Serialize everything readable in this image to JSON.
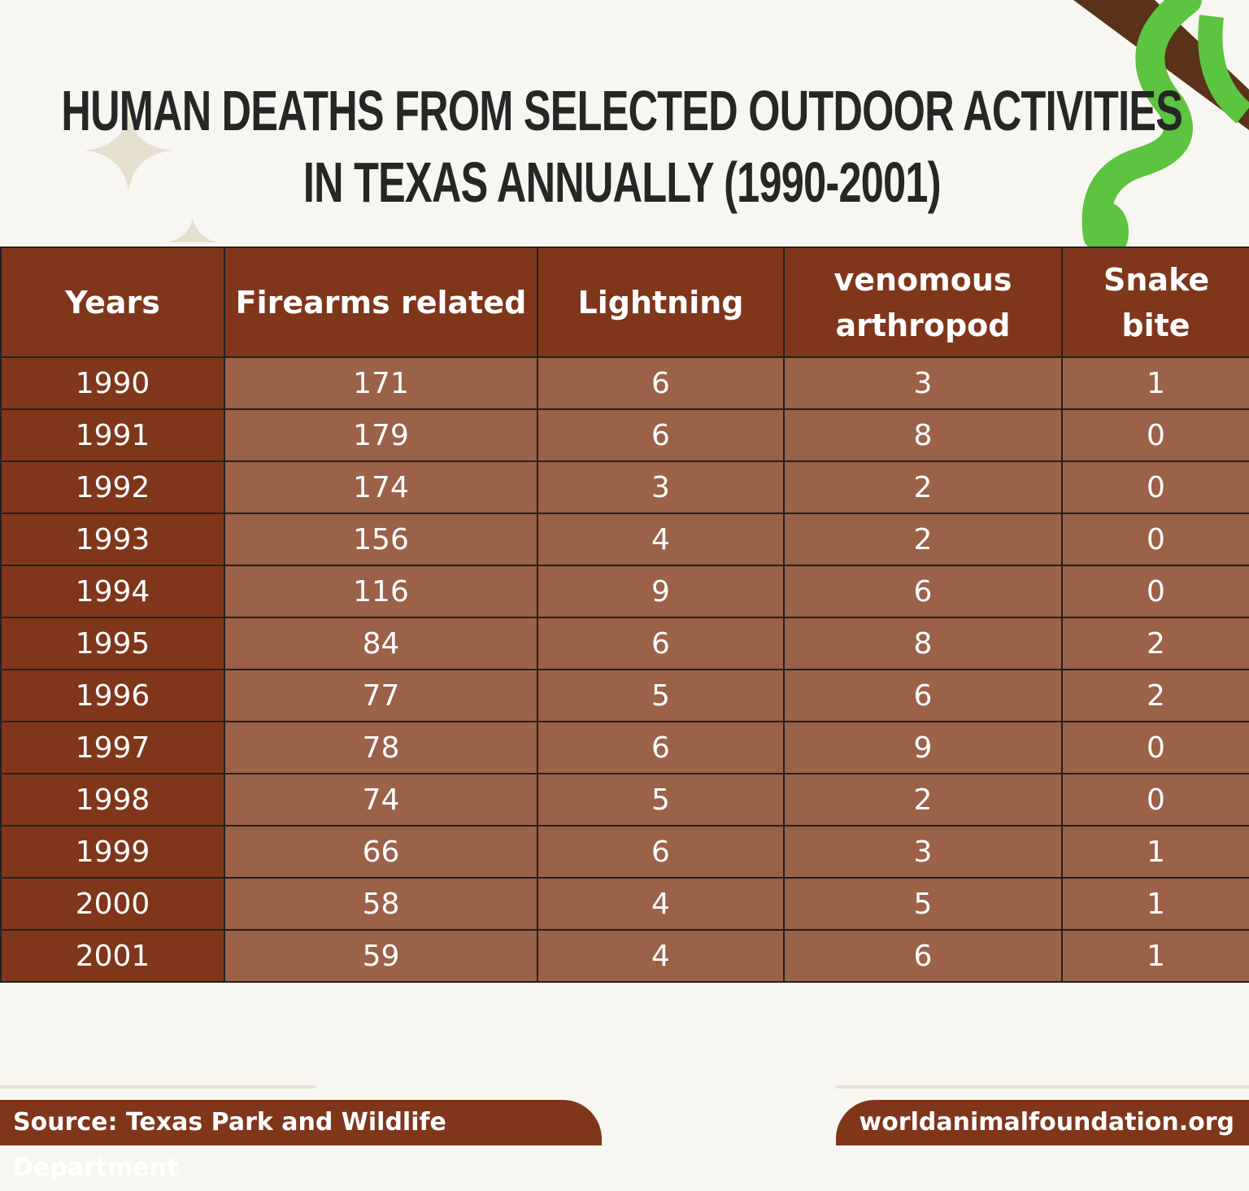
{
  "header": {
    "title": "HUMAN DEATHS FROM SELECTED OUTDOOR ACTIVITIES IN TEXAS ANNUALLY (1990-2001)"
  },
  "table": {
    "columns": [
      "Years",
      "Firearms related",
      "Lightning",
      "venomous arthropod",
      "Snake bite"
    ],
    "rows": [
      [
        1990,
        171,
        6,
        3,
        1
      ],
      [
        1991,
        179,
        6,
        8,
        0
      ],
      [
        1992,
        174,
        3,
        2,
        0
      ],
      [
        1993,
        156,
        4,
        2,
        0
      ],
      [
        1994,
        116,
        9,
        6,
        0
      ],
      [
        1995,
        84,
        6,
        8,
        2
      ],
      [
        1996,
        77,
        5,
        6,
        2
      ],
      [
        1997,
        78,
        6,
        9,
        0
      ],
      [
        1998,
        74,
        5,
        2,
        0
      ],
      [
        1999,
        66,
        6,
        3,
        1
      ],
      [
        2000,
        58,
        4,
        5,
        1
      ],
      [
        2001,
        59,
        4,
        6,
        1
      ]
    ]
  },
  "footer": {
    "source": "Source: Texas Park and Wildlife Department",
    "website": "worldanimalfoundation.org"
  }
}
